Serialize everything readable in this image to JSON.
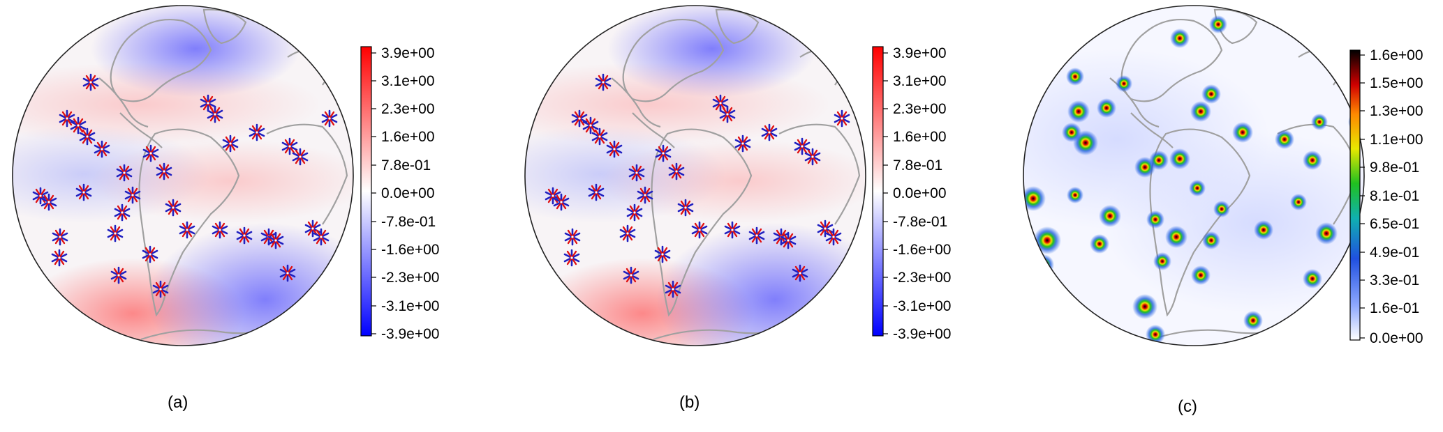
{
  "panels": [
    {
      "label": "(a)",
      "colormap": "diverging-red-blue",
      "colorbar_ticks": [
        "3.9e+00",
        "3.1e+00",
        "2.3e+00",
        "1.6e+00",
        "7.8e-01",
        "0.0e+00",
        "-7.8e-01",
        "-1.6e+00",
        "-2.3e+00",
        "-3.1e+00",
        "-3.9e+00"
      ]
    },
    {
      "label": "(b)",
      "colormap": "diverging-red-blue",
      "colorbar_ticks": [
        "3.9e+00",
        "3.1e+00",
        "2.3e+00",
        "1.6e+00",
        "7.8e-01",
        "0.0e+00",
        "-7.8e-01",
        "-1.6e+00",
        "-2.3e+00",
        "-3.1e+00",
        "-3.9e+00"
      ]
    },
    {
      "label": "(c)",
      "colormap": "sequential-white-blue-green-yellow-red-black",
      "colorbar_ticks": [
        "1.6e+00",
        "1.5e+00",
        "1.3e+00",
        "1.1e+00",
        "9.8e-01",
        "8.1e-01",
        "6.5e-01",
        "4.9e-01",
        "3.3e-01",
        "1.6e-01",
        "0.0e+00"
      ]
    }
  ],
  "colors": {
    "diverging_top": "#ff0000",
    "diverging_mid": "#ffffff",
    "diverging_bottom": "#0000ff",
    "coastline": "#a0a0a0"
  }
}
